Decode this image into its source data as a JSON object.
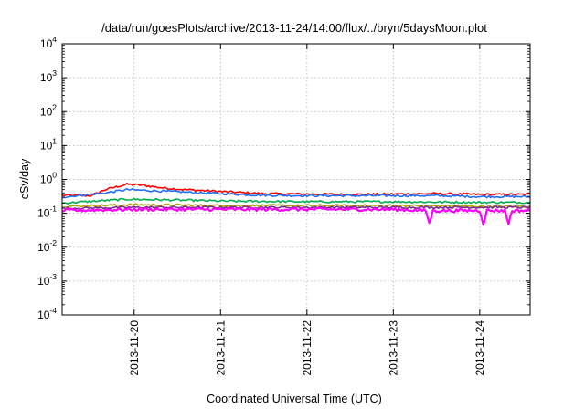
{
  "chart_data": {
    "type": "line",
    "title": "/data/run/goesPlots/archive/2013-11-24/14:00/flux/../bryn/5daysMoon.plot",
    "xlabel": "Coordinated Universal Time (UTC)",
    "ylabel": "cSv/day",
    "yscale": "log",
    "ylim": [
      0.0001,
      10000
    ],
    "y_ticks": [
      {
        "base": "10",
        "exp": "4"
      },
      {
        "base": "10",
        "exp": "3"
      },
      {
        "base": "10",
        "exp": "2"
      },
      {
        "base": "10",
        "exp": "1"
      },
      {
        "base": "10",
        "exp": "0"
      },
      {
        "base": "10",
        "exp": "-1"
      },
      {
        "base": "10",
        "exp": "-2"
      },
      {
        "base": "10",
        "exp": "-3"
      },
      {
        "base": "10",
        "exp": "-4"
      }
    ],
    "x_ticks": [
      "2013-11-20",
      "2013-11-21",
      "2013-11-22",
      "2013-11-23",
      "2013-11-24"
    ],
    "xlim": [
      "2013-11-19T04:00",
      "2013-11-24T14:00"
    ],
    "grid": true,
    "series": [
      {
        "color": "#ff0000",
        "values": [
          [
            "2013-11-19T04:00",
            0.34
          ],
          [
            "2013-11-19T12:00",
            0.33
          ],
          [
            "2013-11-19T16:00",
            0.5
          ],
          [
            "2013-11-19T22:00",
            0.72
          ],
          [
            "2013-11-20T02:00",
            0.68
          ],
          [
            "2013-11-20T08:00",
            0.56
          ],
          [
            "2013-11-20T14:00",
            0.5
          ],
          [
            "2013-11-21T00:00",
            0.44
          ],
          [
            "2013-11-21T12:00",
            0.38
          ],
          [
            "2013-11-22T00:00",
            0.37
          ],
          [
            "2013-11-22T12:00",
            0.36
          ],
          [
            "2013-11-23T00:00",
            0.37
          ],
          [
            "2013-11-23T12:00",
            0.38
          ],
          [
            "2013-11-24T00:00",
            0.36
          ],
          [
            "2013-11-24T14:00",
            0.36
          ]
        ]
      },
      {
        "color": "#1f6fff",
        "values": [
          [
            "2013-11-19T04:00",
            0.3
          ],
          [
            "2013-11-19T16:00",
            0.4
          ],
          [
            "2013-11-19T22:00",
            0.5
          ],
          [
            "2013-11-20T08:00",
            0.45
          ],
          [
            "2013-11-21T00:00",
            0.38
          ],
          [
            "2013-11-21T12:00",
            0.34
          ],
          [
            "2013-11-22T00:00",
            0.33
          ],
          [
            "2013-11-23T00:00",
            0.33
          ],
          [
            "2013-11-23T12:00",
            0.33
          ],
          [
            "2013-11-24T00:00",
            0.31
          ],
          [
            "2013-11-24T14:00",
            0.31
          ]
        ]
      },
      {
        "color": "#00b050",
        "values": [
          [
            "2013-11-19T04:00",
            0.2
          ],
          [
            "2013-11-19T22:00",
            0.26
          ],
          [
            "2013-11-20T08:00",
            0.25
          ],
          [
            "2013-11-21T00:00",
            0.23
          ],
          [
            "2013-11-22T00:00",
            0.22
          ],
          [
            "2013-11-23T00:00",
            0.22
          ],
          [
            "2013-11-24T00:00",
            0.21
          ],
          [
            "2013-11-24T14:00",
            0.21
          ]
        ]
      },
      {
        "color": "#b0a000",
        "values": [
          [
            "2013-11-19T04:00",
            0.16
          ],
          [
            "2013-11-20T00:00",
            0.18
          ],
          [
            "2013-11-21T00:00",
            0.17
          ],
          [
            "2013-11-22T00:00",
            0.17
          ],
          [
            "2013-11-23T00:00",
            0.17
          ],
          [
            "2013-11-24T00:00",
            0.16
          ],
          [
            "2013-11-24T14:00",
            0.16
          ]
        ]
      },
      {
        "color": "#7b2d8e",
        "values": [
          [
            "2013-11-19T04:00",
            0.14
          ],
          [
            "2013-11-20T00:00",
            0.15
          ],
          [
            "2013-11-21T00:00",
            0.15
          ],
          [
            "2013-11-22T00:00",
            0.15
          ],
          [
            "2013-11-23T00:00",
            0.15
          ],
          [
            "2013-11-24T00:00",
            0.15
          ],
          [
            "2013-11-24T14:00",
            0.15
          ]
        ]
      },
      {
        "color": "#ff00ff",
        "values": [
          [
            "2013-11-19T04:00",
            0.12
          ],
          [
            "2013-11-20T00:00",
            0.13
          ],
          [
            "2013-11-21T00:00",
            0.13
          ],
          [
            "2013-11-22T00:00",
            0.13
          ],
          [
            "2013-11-23T00:00",
            0.13
          ],
          [
            "2013-11-23T09:00",
            0.12
          ],
          [
            "2013-11-23T10:00",
            0.05
          ],
          [
            "2013-11-23T11:00",
            0.12
          ],
          [
            "2013-11-24T00:00",
            0.12
          ],
          [
            "2013-11-24T01:00",
            0.05
          ],
          [
            "2013-11-24T02:00",
            0.12
          ],
          [
            "2013-11-24T07:00",
            0.12
          ],
          [
            "2013-11-24T08:00",
            0.05
          ],
          [
            "2013-11-24T09:00",
            0.12
          ],
          [
            "2013-11-24T14:00",
            0.12
          ]
        ]
      }
    ]
  }
}
